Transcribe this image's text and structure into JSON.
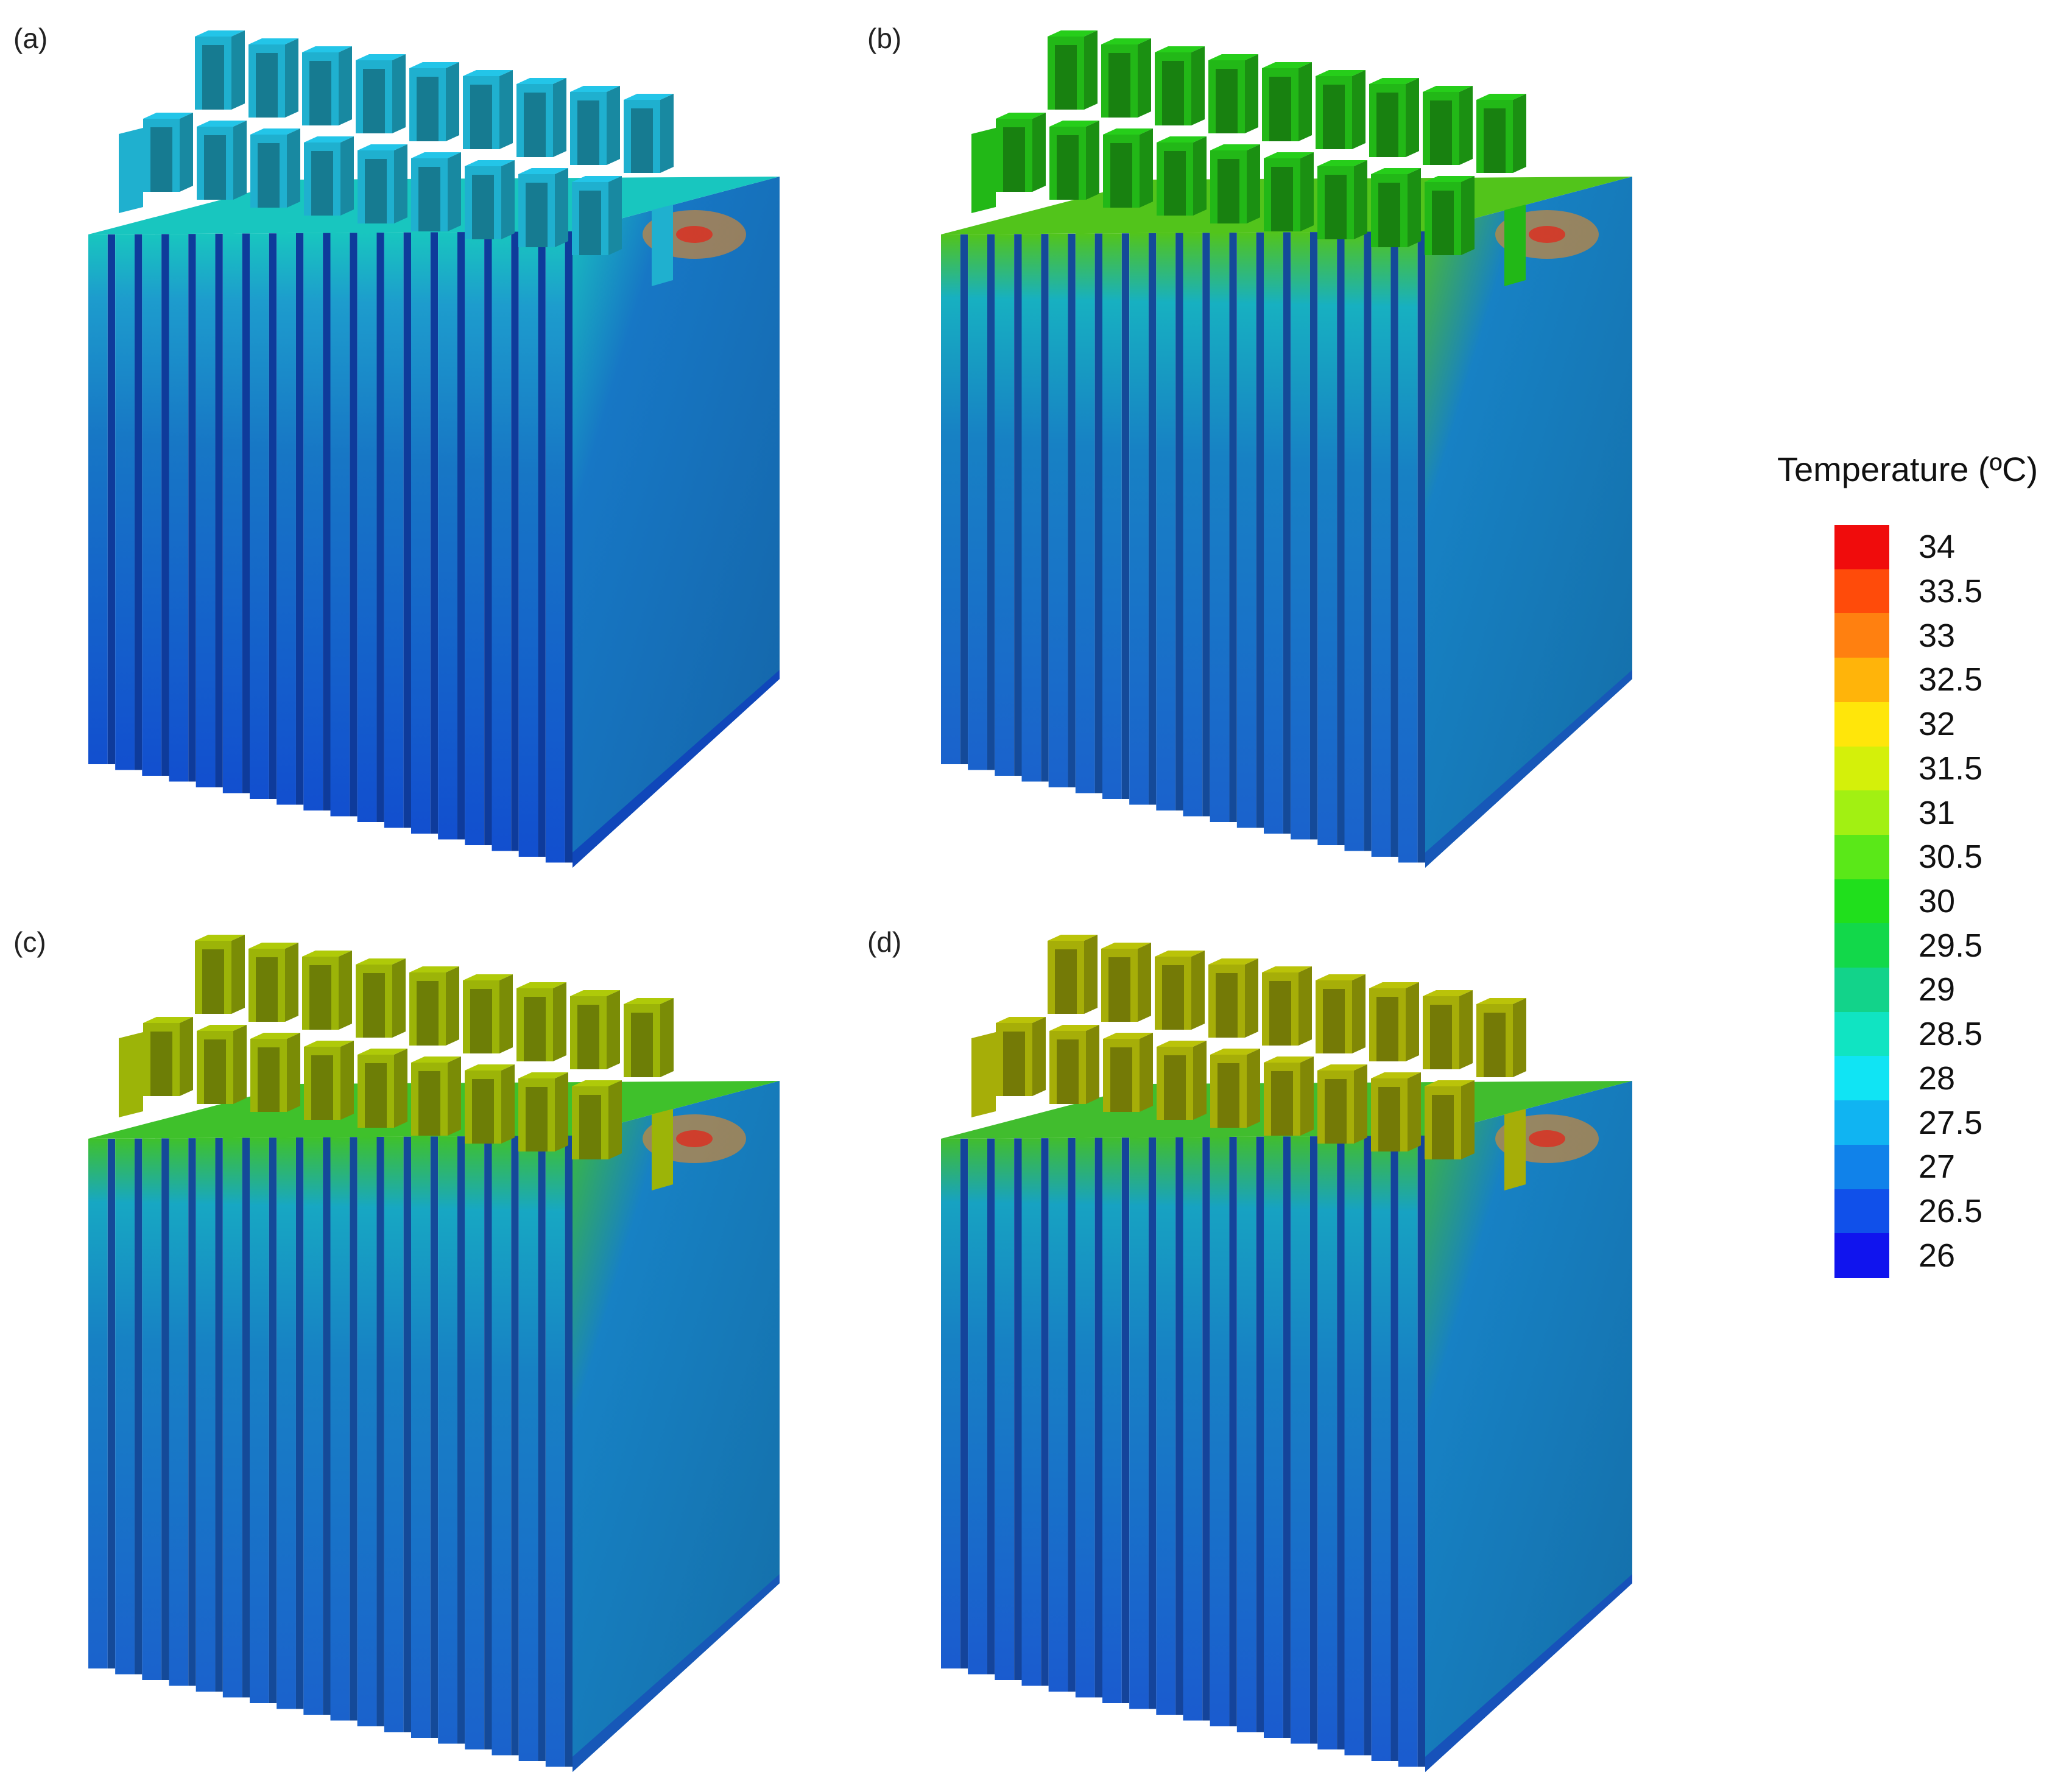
{
  "panels": [
    {
      "label": "(a)",
      "top_color": "#1fb0cf",
      "plate_color": "#1d9ccd",
      "edge_color": "#18c6bf",
      "low_color": "#124fcf",
      "mid_color": "#1777c5"
    },
    {
      "label": "(b)",
      "top_color": "#22b817",
      "plate_color": "#17b0c1",
      "edge_color": "#52c41b",
      "low_color": "#1a62cc",
      "mid_color": "#1781c4"
    },
    {
      "label": "(c)",
      "top_color": "#9cb408",
      "plate_color": "#17a7c3",
      "edge_color": "#3fc12b",
      "low_color": "#1a62cc",
      "mid_color": "#1781c4"
    },
    {
      "label": "(d)",
      "top_color": "#a6ae08",
      "plate_color": "#17a2c2",
      "edge_color": "#41bd2e",
      "low_color": "#1a5bcf",
      "mid_color": "#1781c4"
    }
  ],
  "legend": {
    "title": "Temperature (ºC)",
    "ticks": [
      "34",
      "33.5",
      "33",
      "32.5",
      "32",
      "31.5",
      "31",
      "30.5",
      "30",
      "29.5",
      "29",
      "28.5",
      "28",
      "27.5",
      "27",
      "26.5",
      "26"
    ],
    "colors": [
      "#f00c0c",
      "#ff4b0a",
      "#ff8010",
      "#ffb40a",
      "#ffe60a",
      "#d4f00a",
      "#a2f012",
      "#5ae818",
      "#20df1c",
      "#12d84a",
      "#12d38a",
      "#10e4c2",
      "#10e4f4",
      "#10b4f2",
      "#1082ea",
      "#1050ea",
      "#1014ee"
    ]
  }
}
